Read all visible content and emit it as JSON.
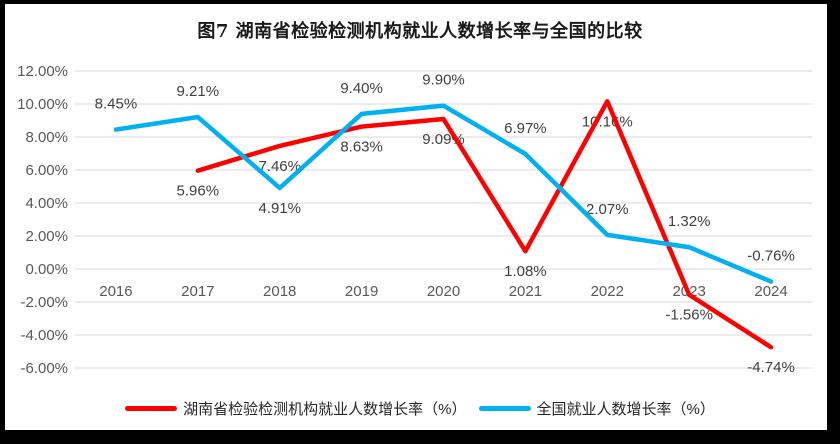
{
  "title": "图7 湖南省检验检测机构就业人数增长率与全国的比较",
  "chart_data": {
    "type": "line",
    "categories": [
      "2016",
      "2017",
      "2018",
      "2019",
      "2020",
      "2021",
      "2022",
      "2023",
      "2024"
    ],
    "series": [
      {
        "name": "湖南省检验检测机构就业人数增长率（%）",
        "color": "#ff0000",
        "values": [
          null,
          5.96,
          7.46,
          8.63,
          9.09,
          1.08,
          10.16,
          -1.56,
          -4.74
        ],
        "labels": [
          null,
          "5.96%",
          "7.46%",
          "8.63%",
          "9.09%",
          "1.08%",
          "10.16%",
          "-1.56%",
          "-4.74%"
        ],
        "label_side": [
          null,
          "below",
          "below",
          "below",
          "below",
          "below",
          "below",
          "below",
          "below"
        ]
      },
      {
        "name": "全国就业人数增长率（%）",
        "color": "#00b0f0",
        "values": [
          8.45,
          9.21,
          4.91,
          9.4,
          9.9,
          6.97,
          2.07,
          1.32,
          -0.76
        ],
        "labels": [
          "8.45%",
          "9.21%",
          "4.91%",
          "9.40%",
          "9.90%",
          "6.97%",
          "2.07%",
          "1.32%",
          "-0.76%"
        ],
        "label_side": [
          "above",
          "above",
          "below",
          "above",
          "above",
          "above",
          "above",
          "above",
          "above"
        ]
      }
    ],
    "y_axis": {
      "min": -6,
      "max": 12,
      "step": 2,
      "tick_labels": [
        "12.00%",
        "10.00%",
        "8.00%",
        "6.00%",
        "4.00%",
        "2.00%",
        "0.00%",
        "-2.00%",
        "-4.00%",
        "-6.00%"
      ]
    },
    "grid": true,
    "legend_position": "bottom",
    "colors": {
      "gridline": "#d9d9d9",
      "axis_label": "#595959",
      "data_label": "#404040",
      "frame_border": "#000000",
      "background": "#ffffff"
    }
  }
}
